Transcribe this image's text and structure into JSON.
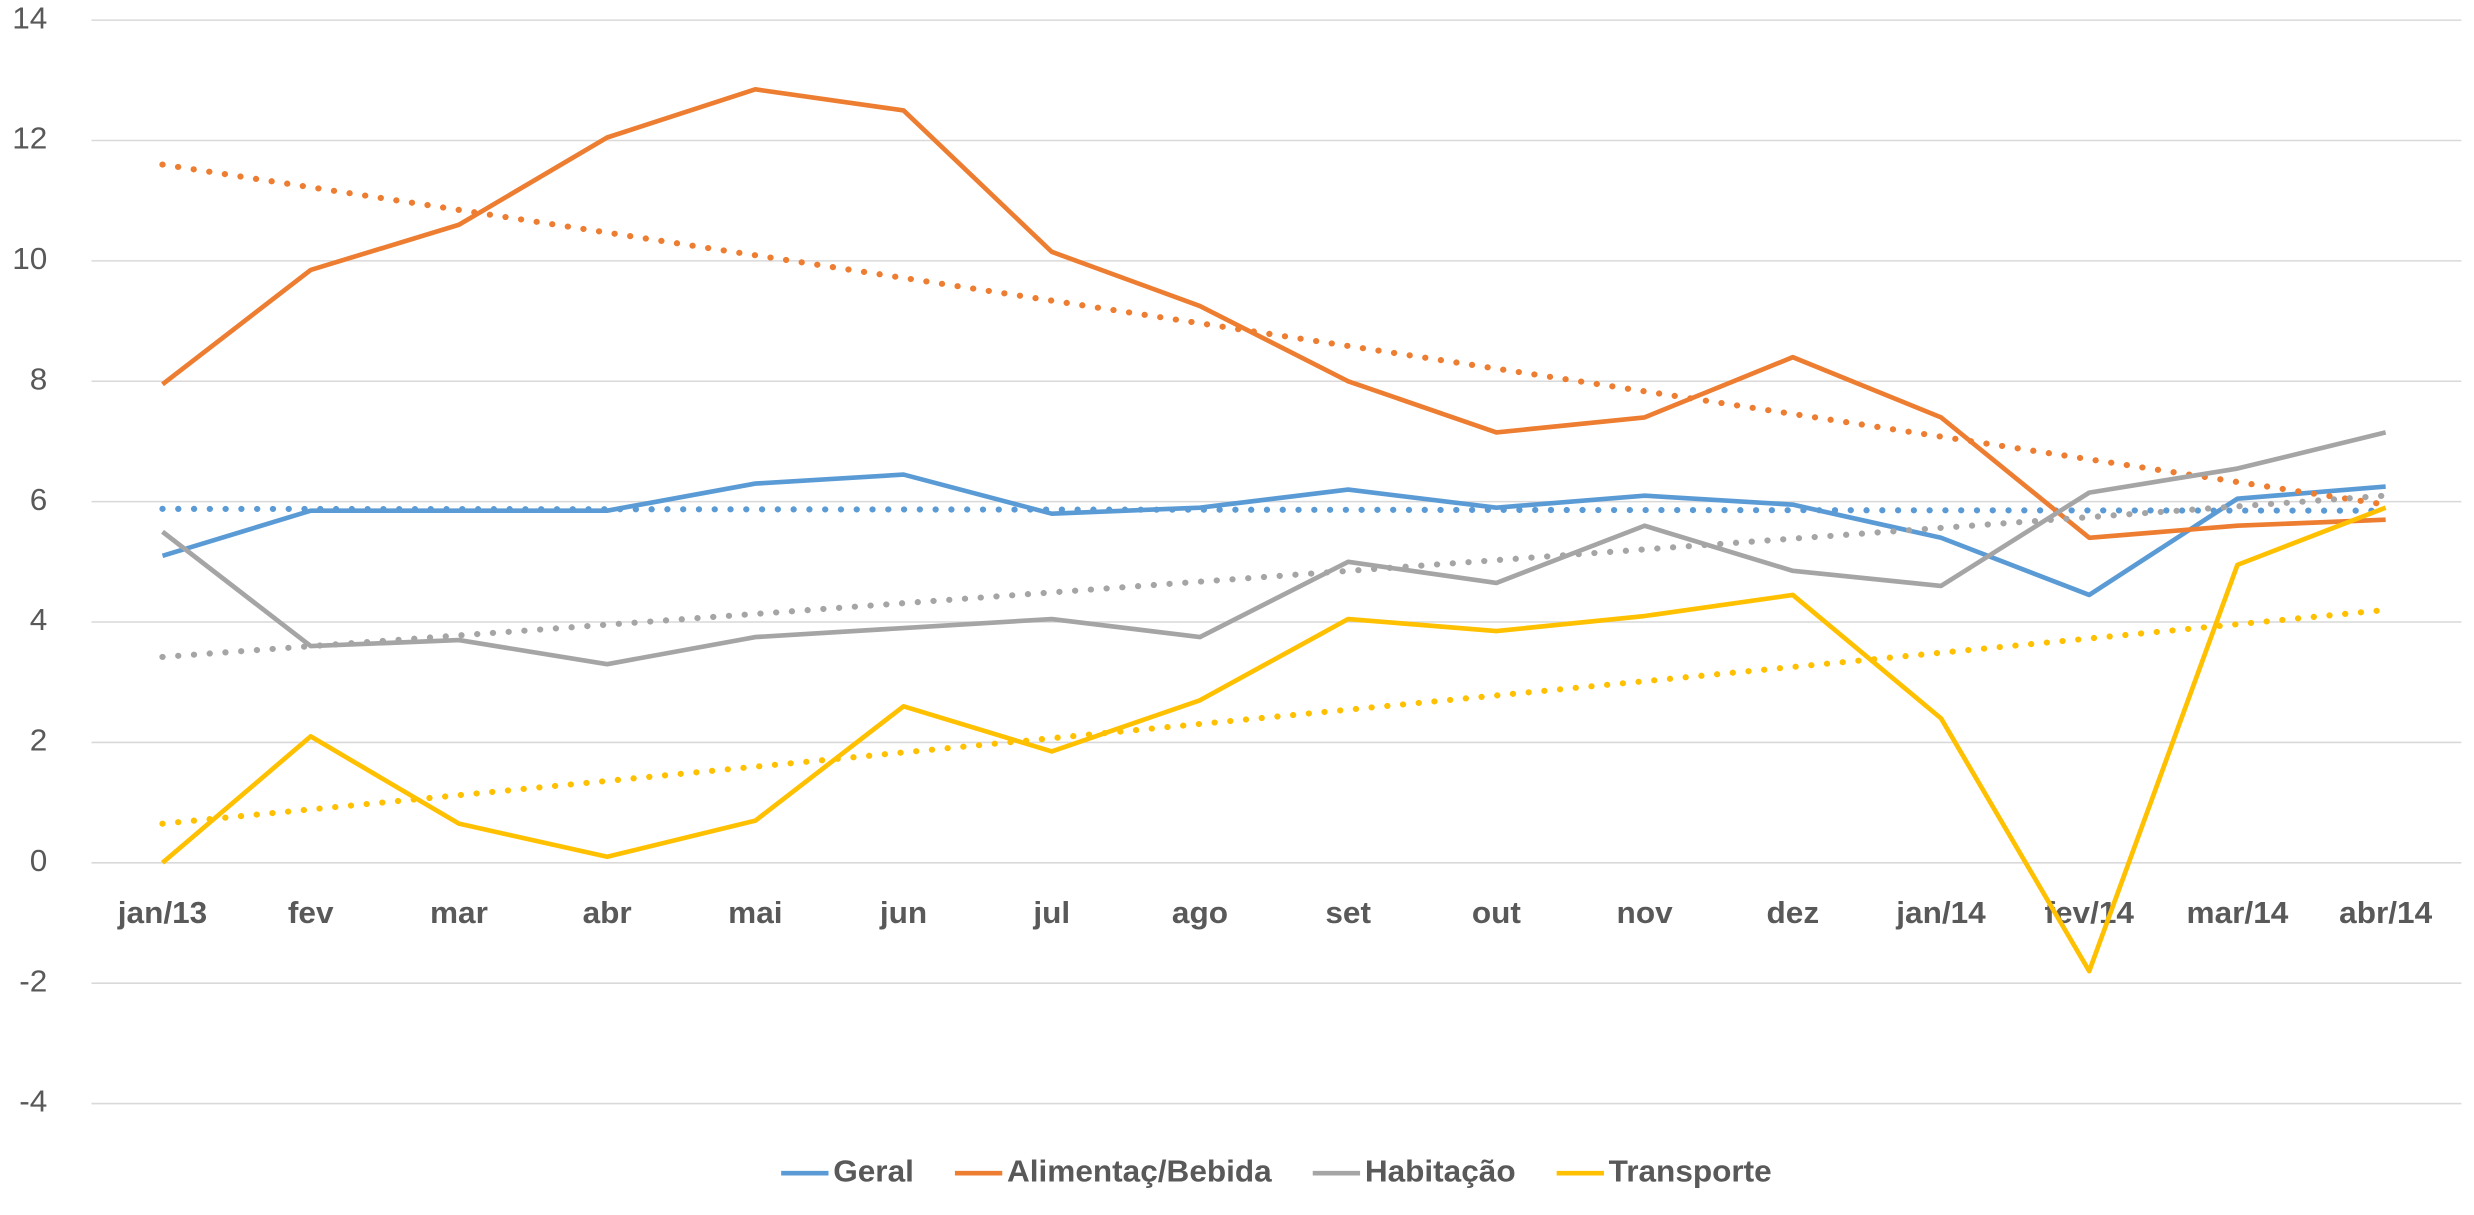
{
  "chart_data": {
    "type": "line",
    "categories": [
      "jan/13",
      "fev",
      "mar",
      "abr",
      "mai",
      "jun",
      "jul",
      "ago",
      "set",
      "out",
      "nov",
      "dez",
      "jan/14",
      "fev/14",
      "mar/14",
      "abr/14"
    ],
    "series": [
      {
        "name": "Geral",
        "color": "#5b9bd5",
        "values": [
          5.1,
          5.85,
          5.85,
          5.85,
          6.3,
          6.45,
          5.8,
          5.9,
          6.2,
          5.9,
          6.1,
          5.95,
          5.4,
          4.45,
          6.05,
          6.25
        ],
        "trend": [
          5.88,
          5.85
        ]
      },
      {
        "name": "Alimentaç/Bebida",
        "color": "#ed7d31",
        "values": [
          7.95,
          9.85,
          10.6,
          12.05,
          12.85,
          12.5,
          10.15,
          9.25,
          8.0,
          7.15,
          7.4,
          8.4,
          7.4,
          5.4,
          5.6,
          5.7
        ],
        "trend": [
          11.6,
          5.95
        ]
      },
      {
        "name": "Habitação",
        "color": "#a5a5a5",
        "values": [
          5.5,
          3.6,
          3.7,
          3.3,
          3.75,
          3.9,
          4.05,
          3.75,
          5.0,
          4.65,
          5.6,
          4.85,
          4.6,
          6.15,
          6.55,
          7.15
        ],
        "trend": [
          3.42,
          6.1
        ]
      },
      {
        "name": "Transporte",
        "color": "#ffc000",
        "values": [
          0.0,
          2.1,
          0.65,
          0.1,
          0.7,
          2.6,
          1.85,
          2.7,
          4.05,
          3.85,
          4.1,
          4.45,
          2.4,
          -1.8,
          4.95,
          5.9
        ],
        "trend": [
          0.65,
          4.2
        ]
      }
    ],
    "ylim": [
      -4,
      14
    ],
    "yticks": [
      -4,
      -2,
      0,
      2,
      4,
      6,
      8,
      10,
      12,
      14
    ],
    "grid": true,
    "legend": "bottom"
  }
}
